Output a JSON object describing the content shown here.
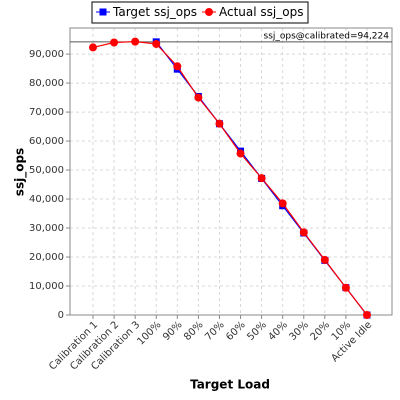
{
  "chart_data": {
    "type": "line",
    "x_label": "Target Load",
    "y_label": "ssj_ops",
    "categories": [
      "Calibration 1",
      "Calibration 2",
      "Calibration 3",
      "100%",
      "90%",
      "80%",
      "70%",
      "60%",
      "50%",
      "40%",
      "30%",
      "20%",
      "10%",
      "Active Idle"
    ],
    "series": [
      {
        "name": "Target ssj_ops",
        "color": "#0000ff",
        "marker": "square",
        "values": [
          null,
          null,
          null,
          94224,
          84802,
          75379,
          65957,
          56534,
          47112,
          37690,
          28267,
          18845,
          9422,
          0
        ]
      },
      {
        "name": "Actual ssj_ops",
        "color": "#ff0000",
        "marker": "circle",
        "values": [
          92300,
          94000,
          94300,
          93500,
          85800,
          75000,
          66000,
          55700,
          47200,
          38500,
          28500,
          19000,
          9400,
          0
        ]
      }
    ],
    "annotation": {
      "text": "ssj_ops@calibrated=94,224",
      "value": 94224
    },
    "ylim": [
      0,
      99000
    ],
    "yticks": [
      0,
      {
        "value": 10000,
        "label": "10,000"
      },
      {
        "value": 20000,
        "label": "20,000"
      },
      {
        "value": 30000,
        "label": "30,000"
      },
      {
        "value": 40000,
        "label": "40,000"
      },
      {
        "value": 50000,
        "label": "50,000"
      },
      {
        "value": 60000,
        "label": "60,000"
      },
      {
        "value": 70000,
        "label": "70,000"
      },
      {
        "value": 80000,
        "label": "80,000"
      },
      {
        "value": 90000,
        "label": "90,000"
      }
    ],
    "grid": true,
    "legend": "top"
  }
}
